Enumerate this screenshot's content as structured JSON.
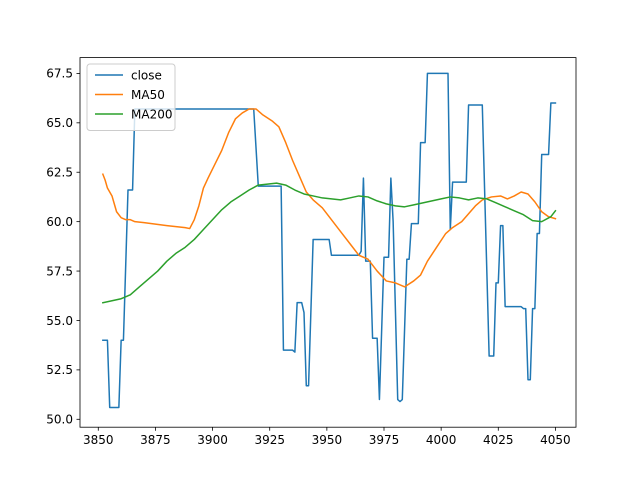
{
  "chart_data": {
    "type": "line",
    "title": "",
    "xlabel": "",
    "ylabel": "",
    "xlim": [
      3842,
      4059
    ],
    "ylim": [
      49.6,
      68.3
    ],
    "xticks": [
      3850,
      3875,
      3900,
      3925,
      3950,
      3975,
      4000,
      4025,
      4050
    ],
    "yticks": [
      50.0,
      52.5,
      55.0,
      57.5,
      60.0,
      62.5,
      65.0,
      67.5
    ],
    "grid": false,
    "legend": "top-left",
    "series": [
      {
        "name": "close",
        "color": "#1f77b4",
        "points": [
          [
            3852,
            54.0
          ],
          [
            3854,
            54.0
          ],
          [
            3855,
            50.6
          ],
          [
            3859,
            50.6
          ],
          [
            3860,
            54.0
          ],
          [
            3861,
            54.0
          ],
          [
            3863,
            61.6
          ],
          [
            3865,
            61.6
          ],
          [
            3866,
            65.7
          ],
          [
            3918,
            65.7
          ],
          [
            3920,
            61.8
          ],
          [
            3930,
            61.8
          ],
          [
            3931,
            53.5
          ],
          [
            3935,
            53.5
          ],
          [
            3936,
            53.4
          ],
          [
            3937,
            55.9
          ],
          [
            3939,
            55.9
          ],
          [
            3940,
            55.4
          ],
          [
            3941,
            51.7
          ],
          [
            3942,
            51.7
          ],
          [
            3944,
            59.1
          ],
          [
            3951,
            59.1
          ],
          [
            3952,
            58.3
          ],
          [
            3964,
            58.3
          ],
          [
            3965,
            58.5
          ],
          [
            3966,
            62.2
          ],
          [
            3967,
            58.0
          ],
          [
            3969,
            58.0
          ],
          [
            3970,
            54.1
          ],
          [
            3972,
            54.1
          ],
          [
            3973,
            51.0
          ],
          [
            3975,
            58.2
          ],
          [
            3977,
            58.2
          ],
          [
            3978,
            62.2
          ],
          [
            3979,
            60.0
          ],
          [
            3981,
            51.0
          ],
          [
            3982,
            50.9
          ],
          [
            3983,
            51.0
          ],
          [
            3985,
            58.1
          ],
          [
            3986,
            58.1
          ],
          [
            3987,
            59.9
          ],
          [
            3990,
            59.9
          ],
          [
            3991,
            64.0
          ],
          [
            3993,
            64.0
          ],
          [
            3994,
            67.5
          ],
          [
            4003,
            67.5
          ],
          [
            4004,
            59.6
          ],
          [
            4005,
            62.0
          ],
          [
            4011,
            62.0
          ],
          [
            4012,
            65.9
          ],
          [
            4018,
            65.9
          ],
          [
            4021,
            53.2
          ],
          [
            4023,
            53.2
          ],
          [
            4024,
            56.9
          ],
          [
            4025,
            56.9
          ],
          [
            4026,
            59.8
          ],
          [
            4027,
            59.8
          ],
          [
            4028,
            55.7
          ],
          [
            4035,
            55.7
          ],
          [
            4036,
            55.6
          ],
          [
            4037,
            55.6
          ],
          [
            4038,
            52.0
          ],
          [
            4039,
            52.0
          ],
          [
            4040,
            55.6
          ],
          [
            4041,
            55.6
          ],
          [
            4042,
            59.4
          ],
          [
            4043,
            59.4
          ],
          [
            4044,
            63.4
          ],
          [
            4047,
            63.4
          ],
          [
            4048,
            66.0
          ],
          [
            4050,
            66.0
          ]
        ]
      },
      {
        "name": "MA50",
        "color": "#ff7f0e",
        "points": [
          [
            3852,
            62.4
          ],
          [
            3853,
            62.1
          ],
          [
            3854,
            61.7
          ],
          [
            3856,
            61.3
          ],
          [
            3857,
            60.9
          ],
          [
            3858,
            60.5
          ],
          [
            3860,
            60.2
          ],
          [
            3862,
            60.1
          ],
          [
            3864,
            60.1
          ],
          [
            3866,
            60.0
          ],
          [
            3870,
            59.95
          ],
          [
            3880,
            59.8
          ],
          [
            3888,
            59.7
          ],
          [
            3890,
            59.65
          ],
          [
            3892,
            60.1
          ],
          [
            3894,
            60.8
          ],
          [
            3896,
            61.7
          ],
          [
            3898,
            62.2
          ],
          [
            3901,
            62.9
          ],
          [
            3904,
            63.6
          ],
          [
            3907,
            64.5
          ],
          [
            3910,
            65.2
          ],
          [
            3913,
            65.5
          ],
          [
            3916,
            65.7
          ],
          [
            3919,
            65.7
          ],
          [
            3922,
            65.4
          ],
          [
            3926,
            65.1
          ],
          [
            3929,
            64.8
          ],
          [
            3932,
            64.0
          ],
          [
            3935,
            63.1
          ],
          [
            3938,
            62.3
          ],
          [
            3941,
            61.5
          ],
          [
            3944,
            61.1
          ],
          [
            3948,
            60.7
          ],
          [
            3952,
            60.1
          ],
          [
            3956,
            59.5
          ],
          [
            3960,
            58.9
          ],
          [
            3964,
            58.3
          ],
          [
            3968,
            58.1
          ],
          [
            3972,
            57.5
          ],
          [
            3976,
            57.0
          ],
          [
            3980,
            56.9
          ],
          [
            3984,
            56.7
          ],
          [
            3988,
            57.0
          ],
          [
            3991,
            57.3
          ],
          [
            3994,
            58.0
          ],
          [
            3998,
            58.7
          ],
          [
            4002,
            59.4
          ],
          [
            4005,
            59.7
          ],
          [
            4009,
            60.0
          ],
          [
            4012,
            60.4
          ],
          [
            4015,
            60.8
          ],
          [
            4018,
            61.1
          ],
          [
            4022,
            61.25
          ],
          [
            4026,
            61.3
          ],
          [
            4029,
            61.15
          ],
          [
            4032,
            61.3
          ],
          [
            4035,
            61.5
          ],
          [
            4038,
            61.4
          ],
          [
            4041,
            61.0
          ],
          [
            4044,
            60.5
          ],
          [
            4047,
            60.25
          ],
          [
            4050,
            60.15
          ]
        ]
      },
      {
        "name": "MA200",
        "color": "#2ca02c",
        "points": [
          [
            3852,
            55.9
          ],
          [
            3856,
            56.0
          ],
          [
            3860,
            56.1
          ],
          [
            3864,
            56.3
          ],
          [
            3868,
            56.7
          ],
          [
            3872,
            57.1
          ],
          [
            3876,
            57.5
          ],
          [
            3880,
            58.0
          ],
          [
            3884,
            58.4
          ],
          [
            3888,
            58.7
          ],
          [
            3892,
            59.1
          ],
          [
            3896,
            59.6
          ],
          [
            3900,
            60.1
          ],
          [
            3904,
            60.6
          ],
          [
            3908,
            61.0
          ],
          [
            3912,
            61.3
          ],
          [
            3916,
            61.6
          ],
          [
            3920,
            61.85
          ],
          [
            3924,
            61.9
          ],
          [
            3928,
            61.95
          ],
          [
            3932,
            61.85
          ],
          [
            3936,
            61.6
          ],
          [
            3940,
            61.4
          ],
          [
            3944,
            61.3
          ],
          [
            3948,
            61.2
          ],
          [
            3952,
            61.15
          ],
          [
            3956,
            61.1
          ],
          [
            3960,
            61.2
          ],
          [
            3964,
            61.3
          ],
          [
            3968,
            61.25
          ],
          [
            3972,
            61.05
          ],
          [
            3976,
            60.9
          ],
          [
            3980,
            60.8
          ],
          [
            3984,
            60.75
          ],
          [
            3988,
            60.85
          ],
          [
            3992,
            60.95
          ],
          [
            3996,
            61.05
          ],
          [
            4000,
            61.15
          ],
          [
            4004,
            61.25
          ],
          [
            4008,
            61.2
          ],
          [
            4012,
            61.1
          ],
          [
            4016,
            61.2
          ],
          [
            4020,
            61.15
          ],
          [
            4024,
            60.95
          ],
          [
            4028,
            60.75
          ],
          [
            4032,
            60.55
          ],
          [
            4036,
            60.35
          ],
          [
            4040,
            60.05
          ],
          [
            4044,
            60.0
          ],
          [
            4048,
            60.25
          ],
          [
            4050,
            60.55
          ]
        ]
      }
    ]
  }
}
